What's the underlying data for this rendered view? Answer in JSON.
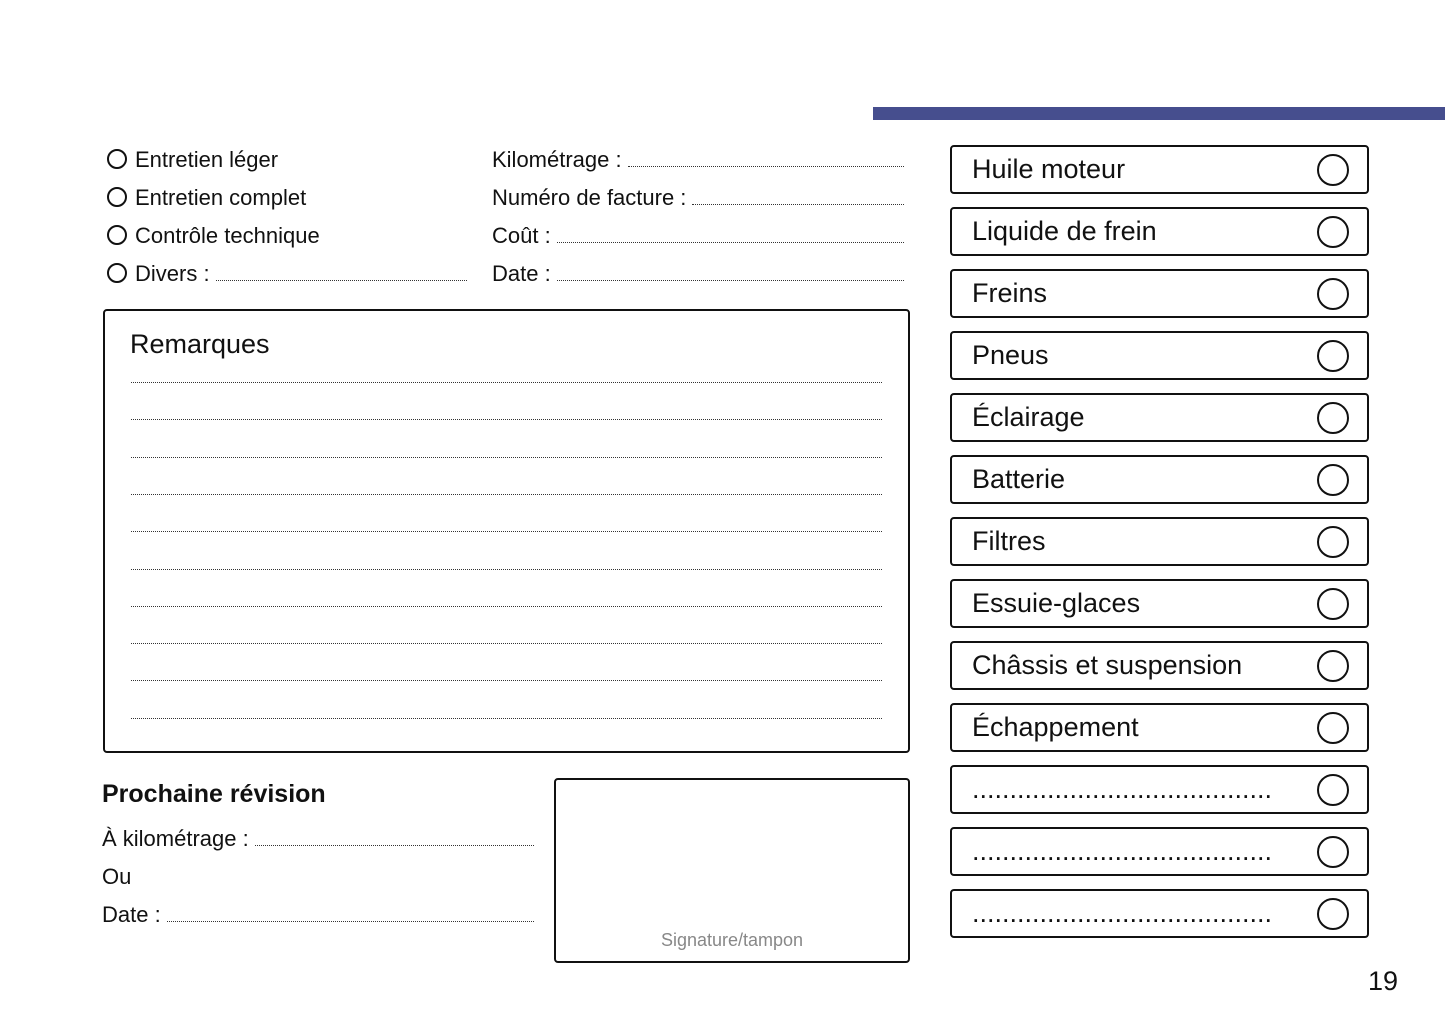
{
  "accent_color": "#464e8e",
  "service_types": [
    {
      "label": "Entretien léger",
      "has_line": false
    },
    {
      "label": "Entretien complet",
      "has_line": false
    },
    {
      "label": "Contrôle technique",
      "has_line": false
    },
    {
      "label": "Divers :",
      "has_line": true
    }
  ],
  "fields": [
    "Kilométrage :",
    "Numéro de facture :",
    "Coût :",
    "Date :"
  ],
  "remarks": {
    "title": "Remarques",
    "line_count": 10
  },
  "next_service": {
    "title": "Prochaine révision",
    "km_label": "À kilométrage :",
    "or_label": "Ou",
    "date_label": "Date :"
  },
  "signature_label": "Signature/tampon",
  "checklist": [
    "Huile moteur",
    "Liquide de frein",
    "Freins",
    "Pneus",
    "Éclairage",
    "Batterie",
    "Filtres",
    "Essuie-glaces",
    "Châssis et suspension",
    "Échappement",
    "........................................",
    "........................................",
    "........................................"
  ],
  "page_number": "19"
}
